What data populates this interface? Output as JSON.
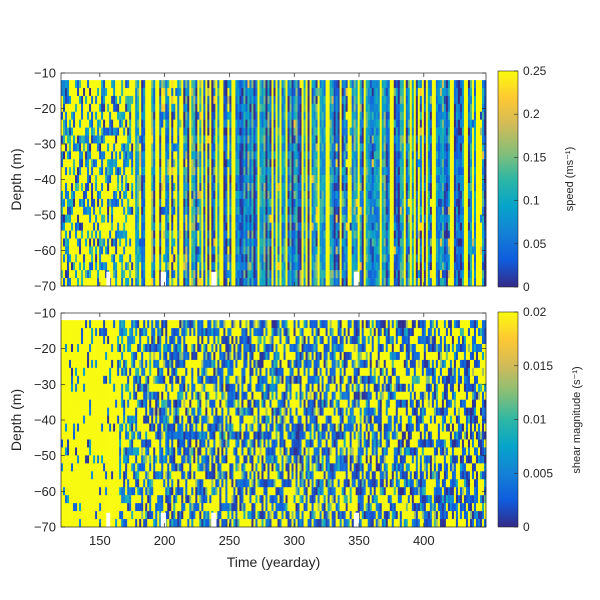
{
  "chart_data": [
    {
      "type": "heatmap",
      "xlabel": "",
      "ylabel": "Depth (m)",
      "xlim": [
        120,
        448
      ],
      "ylim": [
        -70,
        -10
      ],
      "x_ticks": [
        150,
        200,
        250,
        300,
        350,
        400
      ],
      "x_tick_labels": [
        "",
        "",
        "",
        "",
        "",
        ""
      ],
      "y_ticks": [
        -10,
        -20,
        -30,
        -40,
        -50,
        -60,
        -70
      ],
      "y_tick_labels": [
        "−10",
        "−20",
        "−30",
        "−40",
        "−50",
        "−60",
        "−70"
      ],
      "colorbar": {
        "label": "speed (ms⁻¹)",
        "range": [
          0,
          0.25
        ],
        "ticks": [
          0,
          0.05,
          0.1,
          0.15,
          0.2,
          0.25
        ],
        "tick_labels": [
          "0",
          "0.05",
          "0.1",
          "0.15",
          "0.2",
          "0.25"
        ],
        "colormap": "parula"
      },
      "pattern": "mostly vertical time-column stripes of speed, saturated (>=0.25) in many columns; blotchy before yearday ~175"
    },
    {
      "type": "heatmap",
      "xlabel": "Time (yearday)",
      "ylabel": "Depth (m)",
      "xlim": [
        120,
        448
      ],
      "ylim": [
        -70,
        -10
      ],
      "x_ticks": [
        150,
        200,
        250,
        300,
        350,
        400
      ],
      "x_tick_labels": [
        "150",
        "200",
        "250",
        "300",
        "350",
        "400"
      ],
      "y_ticks": [
        -10,
        -20,
        -30,
        -40,
        -50,
        -60,
        -70
      ],
      "y_tick_labels": [
        "−10",
        "−20",
        "−30",
        "−40",
        "−50",
        "−60",
        "−70"
      ],
      "colorbar": {
        "label": "shear magnitude (s⁻¹)",
        "range": [
          0,
          0.02
        ],
        "ticks": [
          0,
          0.005,
          0.01,
          0.015,
          0.02
        ],
        "tick_labels": [
          "0",
          "0.005",
          "0.01",
          "0.015",
          "0.02"
        ],
        "colormap": "parula"
      },
      "pattern": "shear mostly saturated (>=0.02) before yearday ~170; speckled mix of low and high values afterwards"
    }
  ]
}
